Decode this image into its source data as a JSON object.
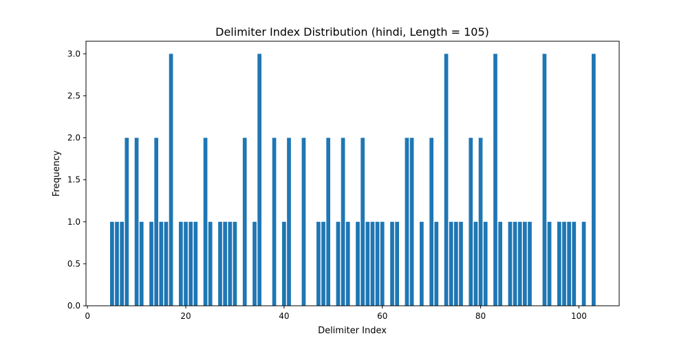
{
  "chart_data": {
    "type": "bar",
    "title": "Delimiter Index Distribution (hindi, Length = 105)",
    "xlabel": "Delimiter Index",
    "ylabel": "Frequency",
    "xlim": [
      -0.3,
      108.2
    ],
    "ylim": [
      0,
      3.15
    ],
    "xticks": [
      0,
      20,
      40,
      60,
      80,
      100
    ],
    "yticks": [
      0.0,
      0.5,
      1.0,
      1.5,
      2.0,
      2.5,
      3.0
    ],
    "ytick_labels": [
      "0.0",
      "0.5",
      "1.0",
      "1.5",
      "2.0",
      "2.5",
      "3.0"
    ],
    "grid": false,
    "bar_color": "#1f77b4",
    "x": [
      5,
      6,
      7,
      8,
      10,
      11,
      13,
      14,
      15,
      16,
      17,
      19,
      20,
      21,
      22,
      24,
      25,
      27,
      28,
      29,
      30,
      32,
      34,
      35,
      38,
      40,
      41,
      44,
      47,
      48,
      49,
      51,
      52,
      53,
      55,
      56,
      57,
      58,
      59,
      60,
      62,
      63,
      65,
      66,
      68,
      70,
      71,
      73,
      74,
      75,
      76,
      78,
      79,
      80,
      81,
      83,
      84,
      86,
      87,
      88,
      89,
      90,
      93,
      94,
      96,
      97,
      98,
      99,
      101,
      103
    ],
    "values": [
      1,
      1,
      1,
      2,
      2,
      1,
      1,
      2,
      1,
      1,
      3,
      1,
      1,
      1,
      1,
      2,
      1,
      1,
      1,
      1,
      1,
      2,
      1,
      3,
      2,
      1,
      2,
      2,
      1,
      1,
      2,
      1,
      2,
      1,
      1,
      2,
      1,
      1,
      1,
      1,
      1,
      1,
      2,
      2,
      1,
      2,
      1,
      3,
      1,
      1,
      1,
      2,
      1,
      2,
      1,
      3,
      1,
      1,
      1,
      1,
      1,
      1,
      3,
      1,
      1,
      1,
      1,
      1,
      1,
      3
    ]
  }
}
